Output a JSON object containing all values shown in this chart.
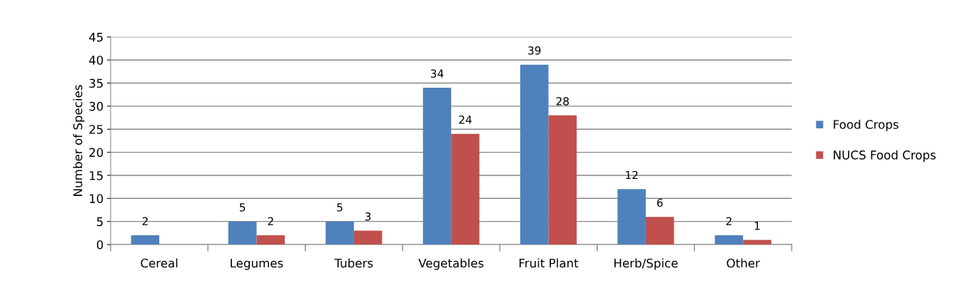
{
  "chart_data": {
    "type": "bar",
    "ylabel": "Number of Species",
    "categories": [
      "Cereal",
      "Legumes",
      "Tubers",
      "Vegetables",
      "Fruit Plant",
      "Herb/Spice",
      "Other"
    ],
    "series": [
      {
        "name": "Food Crops",
        "color": "#4f81bd",
        "values": [
          2,
          5,
          5,
          34,
          39,
          12,
          2
        ]
      },
      {
        "name": "NUCS Food Crops",
        "color": "#c0504d",
        "values": [
          null,
          2,
          3,
          24,
          28,
          6,
          1
        ]
      }
    ],
    "ylim": [
      0,
      45
    ],
    "yticks": [
      0,
      5,
      10,
      15,
      20,
      25,
      30,
      35,
      40,
      45
    ],
    "grid": "y",
    "legend": "right",
    "data_labels": true
  }
}
